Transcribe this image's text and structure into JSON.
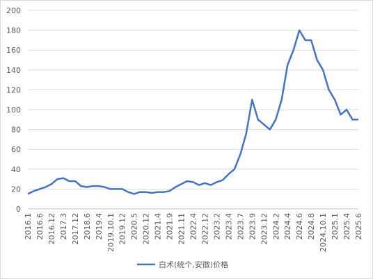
{
  "chart_data": {
    "type": "line",
    "categories": [
      "2016.1",
      null,
      "2016.6",
      null,
      "2016.12",
      null,
      "2017.3",
      null,
      "2017.12",
      null,
      "2018.6",
      null,
      "2019.4",
      null,
      "2019.10.1",
      null,
      "2019.12",
      null,
      "2020.5",
      null,
      "2020.12",
      null,
      "2021.4",
      null,
      "2021.9",
      null,
      "2021.11",
      null,
      "2022.4",
      null,
      "2022.12",
      null,
      "2023.2",
      null,
      "2023.4",
      null,
      "2023.7",
      null,
      "2023.9",
      null,
      "2023.12",
      null,
      "2024.2",
      null,
      "2024.4",
      null,
      "2024.6",
      null,
      "2024.8",
      null,
      "2024.10.1",
      null,
      "2025.1",
      null,
      "2025.4",
      null,
      "2025.6"
    ],
    "series": [
      {
        "name": "白术(统个,安徽)价格",
        "color": "#4472c4",
        "values": [
          15,
          18,
          20,
          22,
          25,
          30,
          31,
          28,
          28,
          23,
          22,
          23,
          23,
          22,
          20,
          20,
          20,
          17,
          15,
          17,
          17,
          16,
          17,
          17,
          18,
          22,
          25,
          28,
          27,
          24,
          26,
          24,
          27,
          29,
          35,
          40,
          55,
          76,
          110,
          90,
          85,
          80,
          90,
          110,
          145,
          160,
          180,
          170,
          170,
          150,
          140,
          120,
          110,
          95,
          100,
          90,
          90
        ]
      }
    ],
    "ylim": [
      0,
      200
    ],
    "yticks": [
      0,
      20,
      40,
      60,
      80,
      100,
      120,
      140,
      160,
      180,
      200
    ],
    "grid": true,
    "legend": "bottom"
  }
}
